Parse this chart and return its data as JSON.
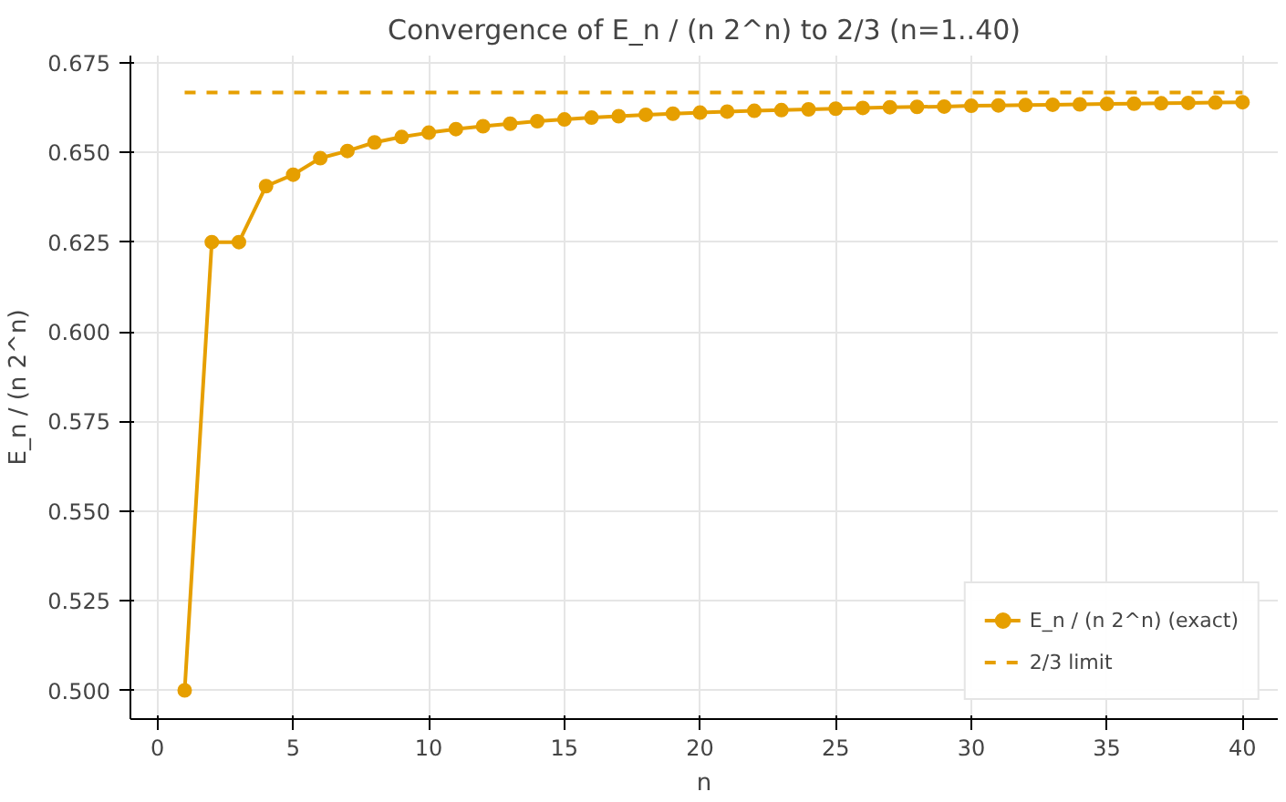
{
  "chart_data": {
    "type": "line",
    "title": "Convergence of E_n / (n 2^n) to 2/3 (n=1..40)",
    "xlabel": "n",
    "ylabel": "E_n / (n 2^n)",
    "x": [
      1,
      2,
      3,
      4,
      5,
      6,
      7,
      8,
      9,
      10,
      11,
      12,
      13,
      14,
      15,
      16,
      17,
      18,
      19,
      20,
      21,
      22,
      23,
      24,
      25,
      26,
      27,
      28,
      29,
      30,
      31,
      32,
      33,
      34,
      35,
      36,
      37,
      38,
      39,
      40
    ],
    "series": [
      {
        "name": "E_n / (n 2^n) (exact)",
        "color": "#e69f00",
        "marker": "circle",
        "line_style": "solid",
        "values": [
          0.5,
          0.625,
          0.625,
          0.6406,
          0.6438,
          0.6484,
          0.6504,
          0.6528,
          0.6543,
          0.6555,
          0.6565,
          0.6573,
          0.658,
          0.6587,
          0.6592,
          0.6597,
          0.6601,
          0.6605,
          0.6608,
          0.6611,
          0.6614,
          0.6616,
          0.6618,
          0.662,
          0.6622,
          0.6624,
          0.6626,
          0.6627,
          0.6628,
          0.663,
          0.6631,
          0.6632,
          0.6633,
          0.6634,
          0.6635,
          0.6636,
          0.6637,
          0.6638,
          0.6639,
          0.664
        ]
      },
      {
        "name": "2/3 limit",
        "color": "#e69f00",
        "marker": "none",
        "line_style": "dashed",
        "x": [
          1,
          40
        ],
        "values": [
          0.6667,
          0.6667
        ]
      }
    ],
    "xlim": [
      -1,
      41.3
    ],
    "ylim": [
      0.492,
      0.677
    ],
    "xticks": [
      0,
      5,
      10,
      15,
      20,
      25,
      30,
      35,
      40
    ],
    "yticks": [
      {
        "value": 0.5,
        "label": "0.500"
      },
      {
        "value": 0.525,
        "label": "0.525"
      },
      {
        "value": 0.55,
        "label": "0.550"
      },
      {
        "value": 0.575,
        "label": "0.575"
      },
      {
        "value": 0.6,
        "label": "0.600"
      },
      {
        "value": 0.625,
        "label": "0.625"
      },
      {
        "value": 0.65,
        "label": "0.650"
      },
      {
        "value": 0.675,
        "label": "0.675"
      }
    ],
    "grid": true,
    "legend": "bottom right"
  }
}
